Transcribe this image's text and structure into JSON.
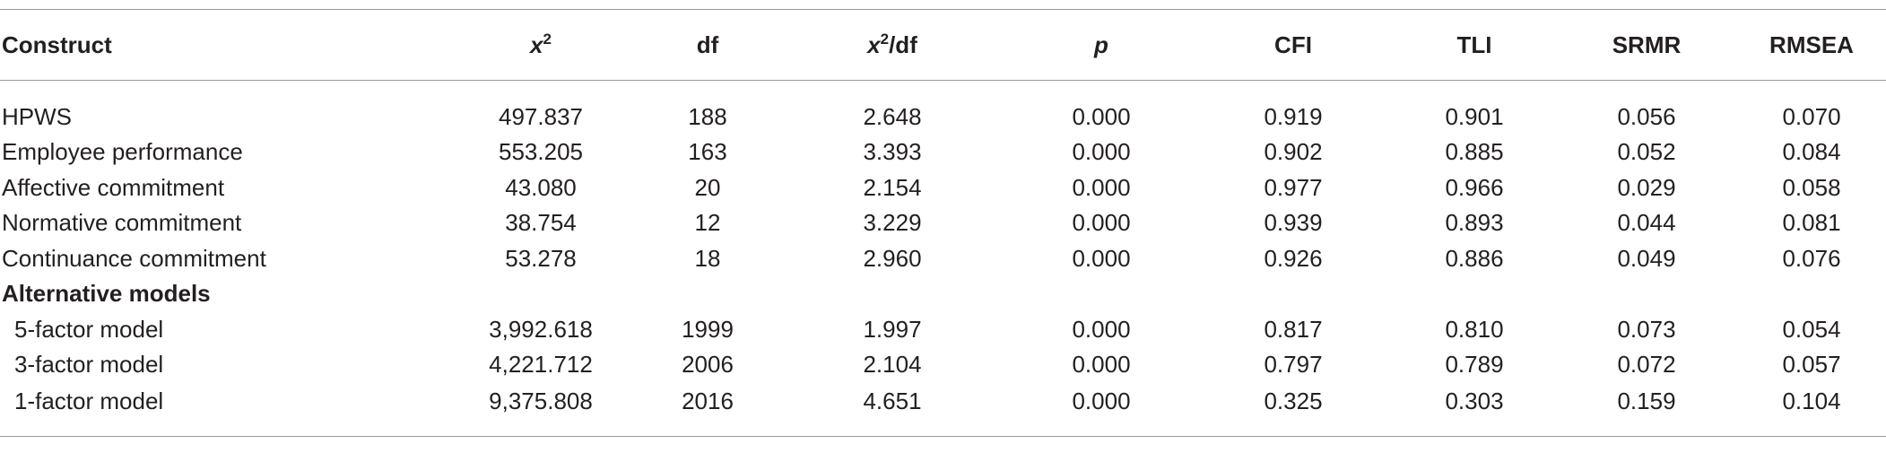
{
  "table": {
    "header": [
      [
        {
          "text": "Construct"
        }
      ],
      [
        {
          "text": "x",
          "italic": true
        },
        {
          "text": "2",
          "sup": true
        }
      ],
      [
        {
          "text": "df"
        }
      ],
      [
        {
          "text": "x",
          "italic": true
        },
        {
          "text": "2",
          "sup": true
        },
        {
          "text": "/df"
        }
      ],
      [
        {
          "text": "p",
          "italic": true
        }
      ],
      [
        {
          "text": "CFI"
        }
      ],
      [
        {
          "text": "TLI"
        }
      ],
      [
        {
          "text": "SRMR"
        }
      ],
      [
        {
          "text": "RMSEA"
        }
      ]
    ],
    "rows": [
      {
        "style": "plain",
        "cells": [
          "HPWS",
          "497.837",
          "188",
          "2.648",
          "0.000",
          "0.919",
          "0.901",
          "0.056",
          "0.070"
        ]
      },
      {
        "style": "plain",
        "cells": [
          "Employee performance",
          "553.205",
          "163",
          "3.393",
          "0.000",
          "0.902",
          "0.885",
          "0.052",
          "0.084"
        ]
      },
      {
        "style": "plain",
        "cells": [
          "Affective commitment",
          "43.080",
          "20",
          "2.154",
          "0.000",
          "0.977",
          "0.966",
          "0.029",
          "0.058"
        ]
      },
      {
        "style": "plain",
        "cells": [
          "Normative commitment",
          "38.754",
          "12",
          "3.229",
          "0.000",
          "0.939",
          "0.893",
          "0.044",
          "0.081"
        ]
      },
      {
        "style": "plain",
        "cells": [
          "Continuance commitment",
          "53.278",
          "18",
          "2.960",
          "0.000",
          "0.926",
          "0.886",
          "0.049",
          "0.076"
        ]
      },
      {
        "style": "section",
        "cells": [
          "Alternative models"
        ]
      },
      {
        "style": "indent",
        "cells": [
          "5-factor model",
          "3,992.618",
          "1999",
          "1.997",
          "0.000",
          "0.817",
          "0.810",
          "0.073",
          "0.054"
        ]
      },
      {
        "style": "indent",
        "cells": [
          "3-factor model",
          "4,221.712",
          "2006",
          "2.104",
          "0.000",
          "0.797",
          "0.789",
          "0.072",
          "0.057"
        ]
      },
      {
        "style": "indent",
        "cells": [
          "1-factor model",
          "9,375.808",
          "2016",
          "4.651",
          "0.000",
          "0.325",
          "0.303",
          "0.159",
          "0.104"
        ]
      }
    ]
  }
}
